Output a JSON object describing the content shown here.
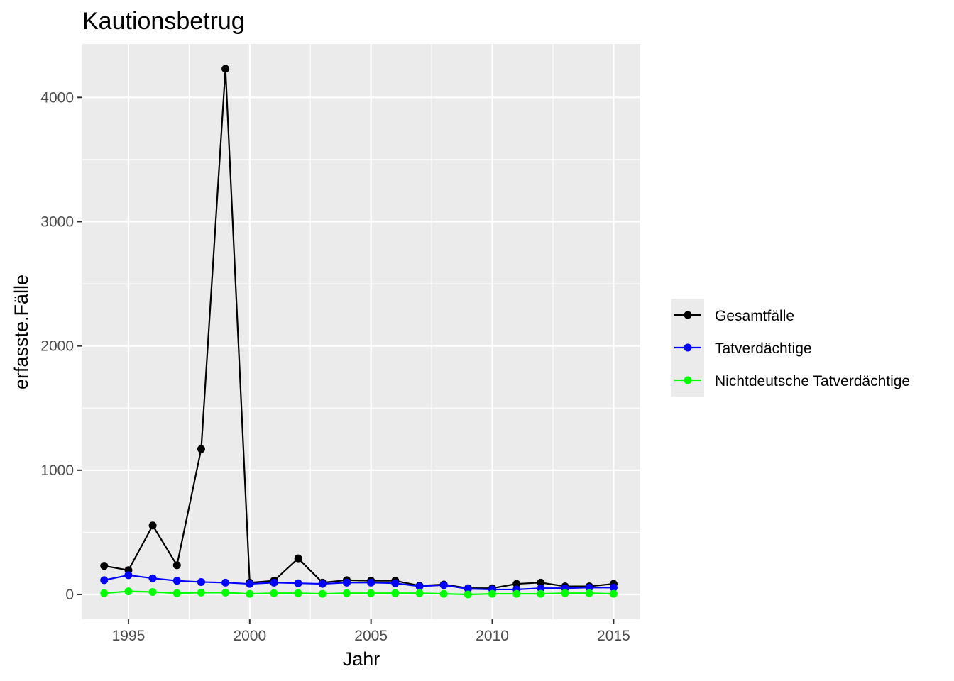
{
  "chart_data": {
    "type": "line",
    "title": "Kautionsbetrug",
    "xlabel": "Jahr",
    "ylabel": "erfasste.Fälle",
    "x": [
      1994,
      1995,
      1996,
      1997,
      1998,
      1999,
      2000,
      2001,
      2002,
      2003,
      2004,
      2005,
      2006,
      2007,
      2008,
      2009,
      2010,
      2011,
      2012,
      2013,
      2014,
      2015
    ],
    "xlim": [
      1993.1,
      2016.1
    ],
    "ylim": [
      -200,
      4430
    ],
    "x_ticks": [
      1995,
      2000,
      2005,
      2010,
      2015
    ],
    "y_ticks": [
      0,
      1000,
      2000,
      3000,
      4000
    ],
    "grid": true,
    "legend_position": "right",
    "series": [
      {
        "name": "Gesamtfälle",
        "color": "#000000",
        "values": [
          230,
          195,
          555,
          235,
          1170,
          4230,
          95,
          110,
          290,
          95,
          115,
          110,
          110,
          70,
          80,
          50,
          50,
          85,
          95,
          65,
          65,
          85
        ]
      },
      {
        "name": "Tatverdächtige",
        "color": "#0000ff",
        "values": [
          115,
          155,
          130,
          110,
          100,
          95,
          85,
          95,
          90,
          85,
          95,
          95,
          90,
          65,
          75,
          45,
          40,
          40,
          50,
          50,
          55,
          55
        ]
      },
      {
        "name": "Nichtdeutsche Tatverdächtige",
        "color": "#00ff00",
        "values": [
          10,
          25,
          20,
          10,
          15,
          15,
          5,
          10,
          10,
          5,
          10,
          10,
          10,
          10,
          5,
          0,
          5,
          5,
          5,
          10,
          10,
          5
        ]
      }
    ]
  }
}
